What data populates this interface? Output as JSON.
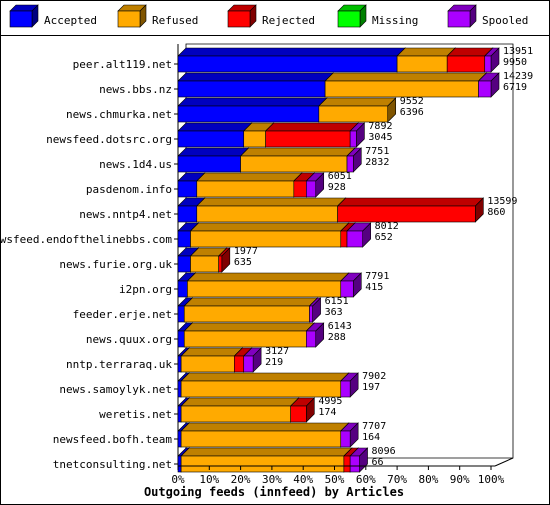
{
  "chart_data": {
    "type": "bar",
    "orientation": "horizontal",
    "stacked": true,
    "style": "3d",
    "xlabel": "Outgoing feeds (innfeed) by Articles",
    "x_ticks": [
      "0%",
      "10%",
      "20%",
      "30%",
      "40%",
      "50%",
      "60%",
      "70%",
      "80%",
      "90%",
      "100%"
    ],
    "xlim": [
      0,
      100
    ],
    "legend_position": "top",
    "legend": [
      {
        "name": "Accepted",
        "color": "#0000ff"
      },
      {
        "name": "Refused",
        "color": "#ffaa00"
      },
      {
        "name": "Rejected",
        "color": "#ff0000"
      },
      {
        "name": "Missing",
        "color": "#00ff00"
      },
      {
        "name": "Spooled",
        "color": "#aa00ff"
      }
    ],
    "rows": [
      {
        "label": "peer.alt119.net",
        "total": "13951",
        "accepted": "9950",
        "pct": [
          70,
          16,
          12,
          0,
          2
        ]
      },
      {
        "label": "news.bbs.nz",
        "total": "14239",
        "accepted": "6719",
        "pct": [
          47,
          49,
          0,
          0,
          4
        ]
      },
      {
        "label": "news.chmurka.net",
        "total": "9552",
        "accepted": "6396",
        "pct": [
          45,
          22,
          0,
          0,
          0
        ]
      },
      {
        "label": "newsfeed.dotsrc.org",
        "total": "7892",
        "accepted": "3045",
        "pct": [
          21,
          7,
          27,
          0,
          2
        ]
      },
      {
        "label": "news.1d4.us",
        "total": "7751",
        "accepted": "2832",
        "pct": [
          20,
          34,
          0,
          0,
          2
        ]
      },
      {
        "label": "pasdenom.info",
        "total": "6051",
        "accepted": "928",
        "pct": [
          6,
          31,
          4,
          0,
          3
        ]
      },
      {
        "label": "news.nntp4.net",
        "total": "13599",
        "accepted": "860",
        "pct": [
          6,
          45,
          44,
          0,
          0
        ]
      },
      {
        "label": "newsfeed.endofthelinebbs.com",
        "total": "8012",
        "accepted": "652",
        "pct": [
          4,
          48,
          2,
          0,
          5
        ]
      },
      {
        "label": "news.furie.org.uk",
        "total": "1977",
        "accepted": "635",
        "pct": [
          4,
          9,
          1,
          0,
          0
        ]
      },
      {
        "label": "i2pn.org",
        "total": "7791",
        "accepted": "415",
        "pct": [
          3,
          49,
          0,
          0,
          4
        ]
      },
      {
        "label": "feeder.erje.net",
        "total": "6151",
        "accepted": "363",
        "pct": [
          2,
          40,
          0,
          0,
          1
        ]
      },
      {
        "label": "news.quux.org",
        "total": "6143",
        "accepted": "288",
        "pct": [
          2,
          39,
          0,
          0,
          3
        ]
      },
      {
        "label": "nntp.terraraq.uk",
        "total": "3127",
        "accepted": "219",
        "pct": [
          1,
          17,
          3,
          0,
          3
        ]
      },
      {
        "label": "news.samoylyk.net",
        "total": "7902",
        "accepted": "197",
        "pct": [
          1,
          51,
          0,
          0,
          3
        ]
      },
      {
        "label": "weretis.net",
        "total": "4995",
        "accepted": "174",
        "pct": [
          1,
          35,
          5,
          0,
          0
        ]
      },
      {
        "label": "newsfeed.bofh.team",
        "total": "7707",
        "accepted": "164",
        "pct": [
          1,
          51,
          0,
          0,
          3
        ]
      },
      {
        "label": "tnetconsulting.net",
        "total": "8096",
        "accepted": "66",
        "pct": [
          1,
          52,
          2,
          0,
          3
        ]
      }
    ]
  }
}
